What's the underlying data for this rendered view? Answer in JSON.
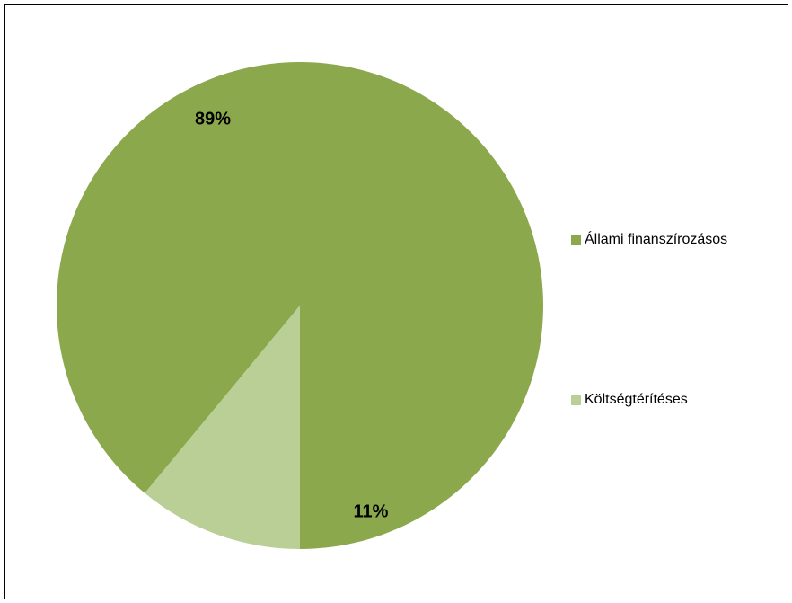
{
  "chart_data": {
    "type": "pie",
    "categories": [
      "Állami finanszírozásos",
      "Költségtérítéses"
    ],
    "values": [
      89,
      11
    ],
    "data_labels": [
      "89%",
      "11%"
    ],
    "colors": [
      "#8BA84D",
      "#BACF96"
    ],
    "start_angle_deg": 0,
    "direction": "counterclockwise",
    "legend_position": "right"
  },
  "legend": {
    "items": [
      {
        "label": "Állami finanszírozásos",
        "color": "#8BA84D"
      },
      {
        "label": "Költségtérítéses",
        "color": "#BACF96"
      }
    ]
  }
}
